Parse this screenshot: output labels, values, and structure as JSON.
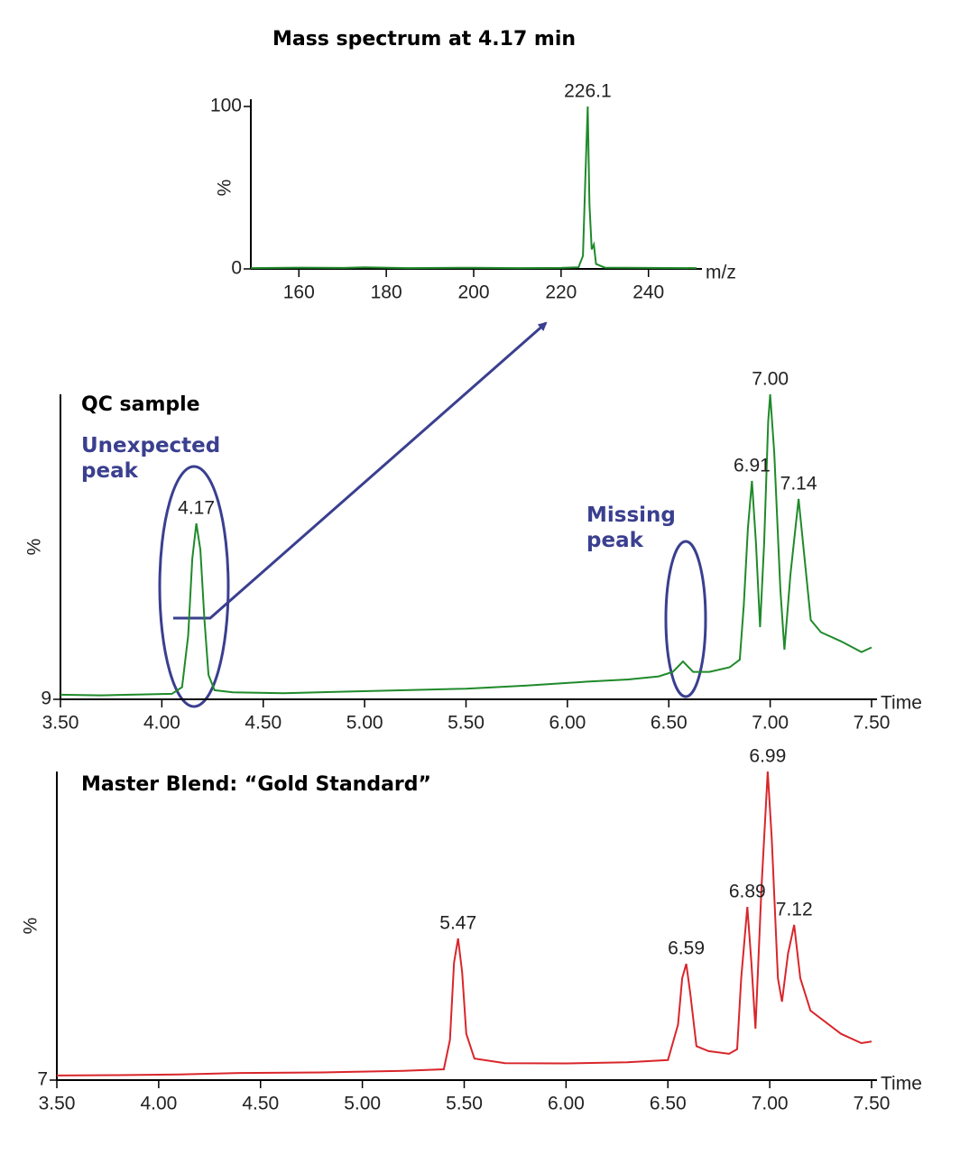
{
  "chart_data": [
    {
      "type": "line",
      "title": "Mass spectrum at 4.17 min",
      "xlabel": "m/z",
      "ylabel": "%",
      "xlim": [
        149,
        251
      ],
      "xticks": [
        160,
        180,
        200,
        220,
        240
      ],
      "ylim": [
        0,
        100
      ],
      "yticks": [
        0,
        100
      ],
      "color": "#1f8a2a",
      "x": [
        149,
        160,
        170,
        175,
        185,
        200,
        210,
        220,
        224,
        225,
        225.6,
        226.1,
        226.5,
        227,
        227.5,
        228,
        230,
        240,
        251
      ],
      "values": [
        0.5,
        0.8,
        0.6,
        1,
        0.5,
        0.7,
        0.5,
        0.6,
        1,
        8,
        60,
        100,
        40,
        12,
        15,
        3,
        0.8,
        0.6,
        0.5
      ],
      "peaks": [
        226.1
      ]
    },
    {
      "type": "line",
      "title": "QC sample",
      "xlabel": "Time",
      "ylabel": "%",
      "xlim": [
        3.5,
        7.5
      ],
      "xticks": [
        {
          "value": 3.5,
          "label": "3.50"
        },
        {
          "value": 4,
          "label": "4.00"
        },
        {
          "value": 4.5,
          "label": "4.50"
        },
        {
          "value": 5,
          "label": "5.00"
        },
        {
          "value": 5.5,
          "label": "5.50"
        },
        {
          "value": 6,
          "label": "6.00"
        },
        {
          "value": 6.5,
          "label": "6.50"
        },
        {
          "value": 7,
          "label": "7.00"
        },
        {
          "value": 7.5,
          "label": "7.50"
        }
      ],
      "ylim": [
        9,
        109
      ],
      "yticks": [
        9
      ],
      "color": "#1f8a2a",
      "x": [
        3.5,
        3.7,
        3.9,
        4.05,
        4.1,
        4.13,
        4.15,
        4.17,
        4.19,
        4.21,
        4.23,
        4.26,
        4.35,
        4.6,
        4.9,
        5.2,
        5.5,
        5.8,
        6.1,
        6.3,
        6.45,
        6.52,
        6.57,
        6.62,
        6.7,
        6.8,
        6.85,
        6.87,
        6.89,
        6.91,
        6.93,
        6.95,
        6.97,
        6.99,
        7.0,
        7.02,
        7.05,
        7.07,
        7.1,
        7.14,
        7.17,
        7.2,
        7.25,
        7.35,
        7.45,
        7.5
      ],
      "values": [
        10.5,
        10.3,
        10.6,
        10.8,
        13,
        30,
        55,
        66.7,
        58,
        35,
        17,
        12,
        11.3,
        11,
        11.5,
        12,
        12.5,
        13.5,
        14.8,
        15.5,
        16.5,
        18,
        21.4,
        18,
        18,
        19.5,
        22,
        40,
        65,
        80.6,
        60,
        32.7,
        60,
        100,
        109,
        90,
        45,
        25.3,
        50,
        74.7,
        55,
        35,
        31,
        28,
        24.5,
        26
      ],
      "peaks": [
        4.17,
        6.91,
        {
          "value": 7.0,
          "label": "7.00"
        },
        7.14
      ],
      "annotations": [
        "Unexpected peak",
        "Missing peak"
      ]
    },
    {
      "type": "line",
      "title": "Master Blend: “Gold Standard”",
      "xlabel": "Time",
      "ylabel": "%",
      "xlim": [
        3.5,
        7.5
      ],
      "xticks": [
        {
          "value": 3.5,
          "label": "3.50"
        },
        {
          "value": 4,
          "label": "4.00"
        },
        {
          "value": 4.5,
          "label": "4.50"
        },
        {
          "value": 5,
          "label": "5.00"
        },
        {
          "value": 5.5,
          "label": "5.50"
        },
        {
          "value": 6,
          "label": "6.00"
        },
        {
          "value": 6.5,
          "label": "6.50"
        },
        {
          "value": 7,
          "label": "7.00"
        },
        {
          "value": 7.5,
          "label": "7.50"
        }
      ],
      "ylim": [
        7,
        107
      ],
      "yticks": [
        7
      ],
      "color": "#d9262b",
      "x": [
        3.5,
        3.8,
        4.1,
        4.4,
        4.8,
        5.2,
        5.4,
        5.43,
        5.45,
        5.47,
        5.49,
        5.51,
        5.55,
        5.7,
        6.0,
        6.3,
        6.5,
        6.55,
        6.57,
        6.59,
        6.61,
        6.64,
        6.7,
        6.8,
        6.84,
        6.86,
        6.89,
        6.91,
        6.93,
        6.96,
        6.99,
        7.01,
        7.04,
        7.06,
        7.09,
        7.12,
        7.15,
        7.2,
        7.35,
        7.45,
        7.5
      ],
      "values": [
        8.5,
        8.6,
        8.8,
        9.3,
        9.5,
        10,
        10.5,
        20,
        45,
        52.9,
        42,
        22,
        14,
        12.5,
        12.4,
        12.8,
        13.5,
        25,
        40,
        44.7,
        35,
        18,
        16.4,
        15.5,
        17,
        40,
        63.1,
        45,
        23.7,
        70,
        107,
        85,
        40,
        32.4,
        48,
        57.3,
        40,
        29.5,
        22,
        19,
        19.5
      ],
      "peaks": [
        5.47,
        6.59,
        6.89,
        6.99,
        7.12
      ]
    }
  ]
}
